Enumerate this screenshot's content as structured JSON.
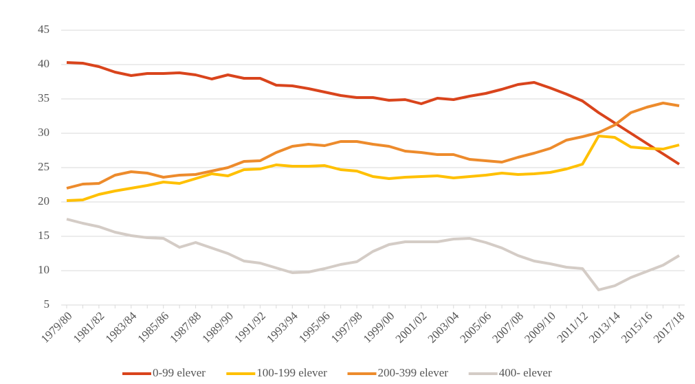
{
  "chart_data": {
    "type": "line",
    "categories": [
      "1979/80",
      null,
      "1981/82",
      null,
      "1983/84",
      null,
      "1985/86",
      null,
      "1987/88",
      null,
      "1989/90",
      null,
      "1991/92",
      null,
      "1993/94",
      null,
      "1995/96",
      null,
      "1997/98",
      null,
      "1999/00",
      null,
      "2001/02",
      null,
      "2003/04",
      null,
      "2005/06",
      null,
      "2007/08",
      null,
      "2009/10",
      null,
      "2011/12",
      null,
      "2013/14",
      null,
      "2015/16",
      null,
      "2017/18"
    ],
    "series": [
      {
        "name": "0-99 elever",
        "color": "#d9441c",
        "values": [
          40.3,
          40.2,
          39.7,
          38.9,
          38.4,
          38.7,
          38.7,
          38.8,
          38.5,
          37.9,
          38.5,
          38.0,
          38.0,
          37.0,
          36.9,
          36.5,
          36.0,
          35.5,
          35.2,
          35.2,
          34.8,
          34.9,
          34.3,
          35.1,
          34.9,
          35.4,
          35.8,
          36.4,
          37.1,
          37.4,
          36.6,
          35.7,
          34.7,
          33.0,
          31.5,
          30.0,
          28.5,
          27.0,
          25.5
        ]
      },
      {
        "name": "100-199 elever",
        "color": "#ffc000",
        "values": [
          20.2,
          20.3,
          21.1,
          21.6,
          22.0,
          22.4,
          22.9,
          22.7,
          23.4,
          24.1,
          23.8,
          24.7,
          24.8,
          25.4,
          25.2,
          25.2,
          25.3,
          24.7,
          24.5,
          23.7,
          23.4,
          23.6,
          23.7,
          23.8,
          23.5,
          23.7,
          23.9,
          24.2,
          24.0,
          24.1,
          24.3,
          24.8,
          25.5,
          29.6,
          29.4,
          28.0,
          27.8,
          27.7,
          28.3
        ]
      },
      {
        "name": "200-399 elever",
        "color": "#ed8b2c",
        "values": [
          22.0,
          22.6,
          22.7,
          23.9,
          24.4,
          24.2,
          23.6,
          23.9,
          24.0,
          24.5,
          25.0,
          25.9,
          26.0,
          27.2,
          28.1,
          28.4,
          28.2,
          28.8,
          28.8,
          28.4,
          28.1,
          27.4,
          27.2,
          26.9,
          26.9,
          26.2,
          26.0,
          25.8,
          26.5,
          27.1,
          27.8,
          29.0,
          29.5,
          30.1,
          31.2,
          33.0,
          33.8,
          34.4,
          34.0
        ]
      },
      {
        "name": "400- elever",
        "color": "#d4ccc6",
        "values": [
          17.5,
          16.9,
          16.4,
          15.6,
          15.1,
          14.8,
          14.7,
          13.4,
          14.1,
          13.3,
          12.5,
          11.4,
          11.1,
          10.4,
          9.7,
          9.8,
          10.3,
          10.9,
          11.3,
          12.8,
          13.8,
          14.2,
          14.2,
          14.2,
          14.6,
          14.7,
          14.1,
          13.3,
          12.2,
          11.4,
          11.0,
          10.5,
          10.3,
          7.2,
          7.8,
          9.0,
          9.9,
          10.8,
          12.2
        ]
      }
    ],
    "ylim": [
      5,
      45
    ],
    "yticks": [
      5,
      10,
      15,
      20,
      25,
      30,
      35,
      40,
      45
    ],
    "grid": true,
    "legend": "bottom"
  }
}
